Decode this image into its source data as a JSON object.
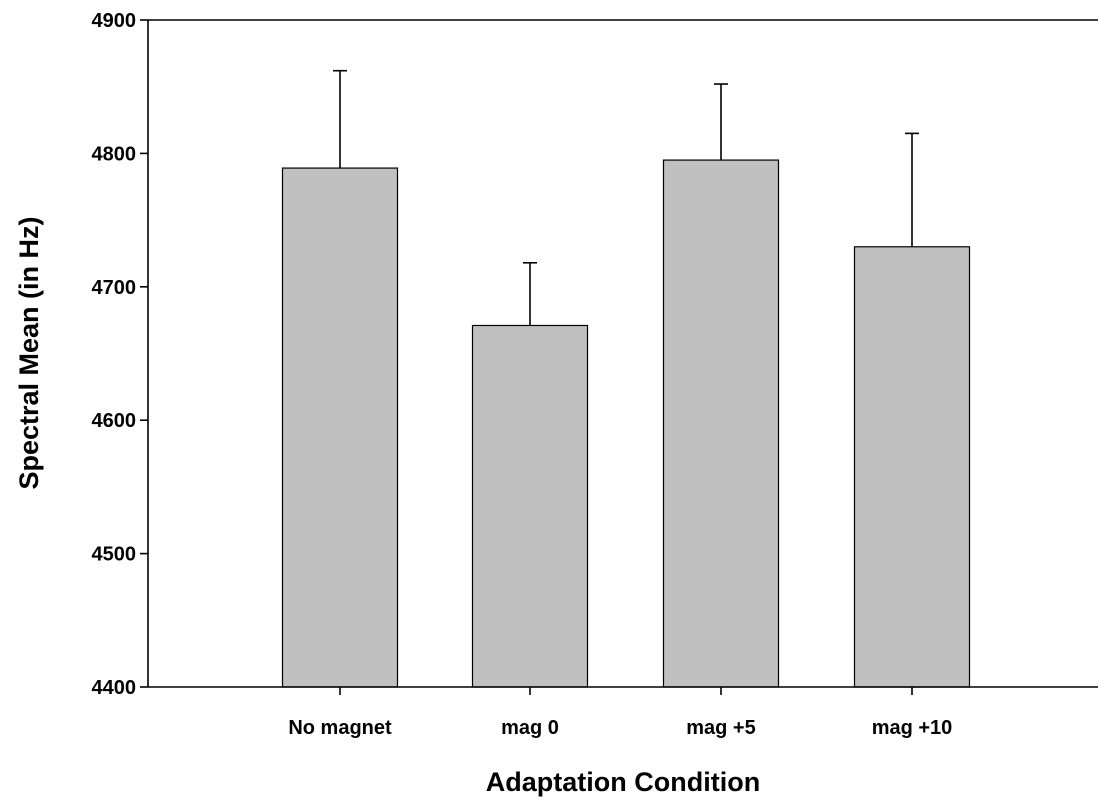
{
  "chart_data": {
    "type": "bar",
    "title": "",
    "xlabel": "Adaptation Condition",
    "ylabel": "Spectral Mean (in Hz)",
    "categories": [
      "No magnet",
      "mag 0",
      "mag +5",
      "mag +10"
    ],
    "values": [
      4789,
      4671,
      4795,
      4730
    ],
    "error_upper": [
      73,
      47,
      57,
      85
    ],
    "ylim": [
      4400,
      4900
    ],
    "yticks": [
      4400,
      4500,
      4600,
      4700,
      4800,
      4900
    ],
    "grid": false,
    "bar_color": "#c0c0c0"
  }
}
